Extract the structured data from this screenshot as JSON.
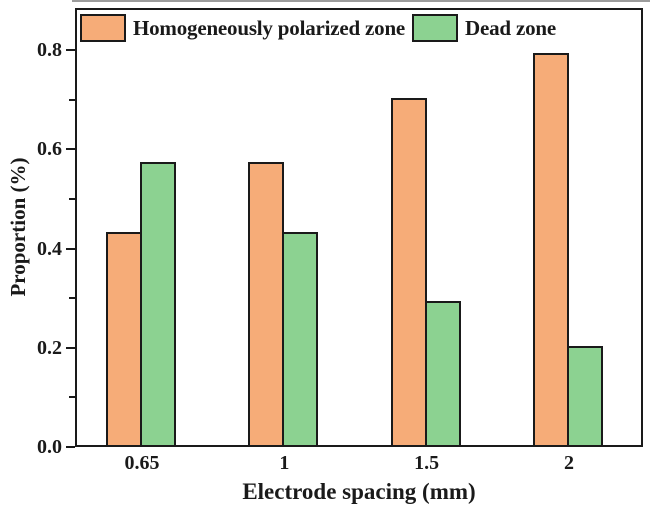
{
  "figure": {
    "y_axis": {
      "label": "Proportion (%)",
      "tick_labels": [
        "0.0",
        "0.2",
        "0.4",
        "0.6",
        "0.8"
      ]
    },
    "x_axis": {
      "label": "Electrode spacing (mm)",
      "tick_labels": [
        "0.65",
        "1",
        "1.5",
        "2"
      ]
    }
  },
  "chart_data": {
    "type": "bar",
    "categories": [
      "0.65",
      "1",
      "1.5",
      "2"
    ],
    "series": [
      {
        "name": "Homogeneously polarized zone",
        "color": "#F6AC78",
        "values": [
          0.43,
          0.57,
          0.7,
          0.79
        ]
      },
      {
        "name": "Dead zone",
        "color": "#8CD291",
        "values": [
          0.57,
          0.43,
          0.29,
          0.2
        ]
      }
    ],
    "title": "",
    "xlabel": "Electrode spacing (mm)",
    "ylabel": "Proportion (%)",
    "ylim": [
      0,
      0.885
    ],
    "y_major_ticks": [
      0.0,
      0.2,
      0.4,
      0.6,
      0.8
    ],
    "y_minor_ticks": [
      0.1,
      0.3,
      0.5,
      0.7
    ],
    "grid": false,
    "legend_position": "top-inside",
    "bar_edge_color": "#1a1a1a"
  },
  "colors": {
    "ink": "#1a1a1a",
    "background": "#ffffff"
  }
}
